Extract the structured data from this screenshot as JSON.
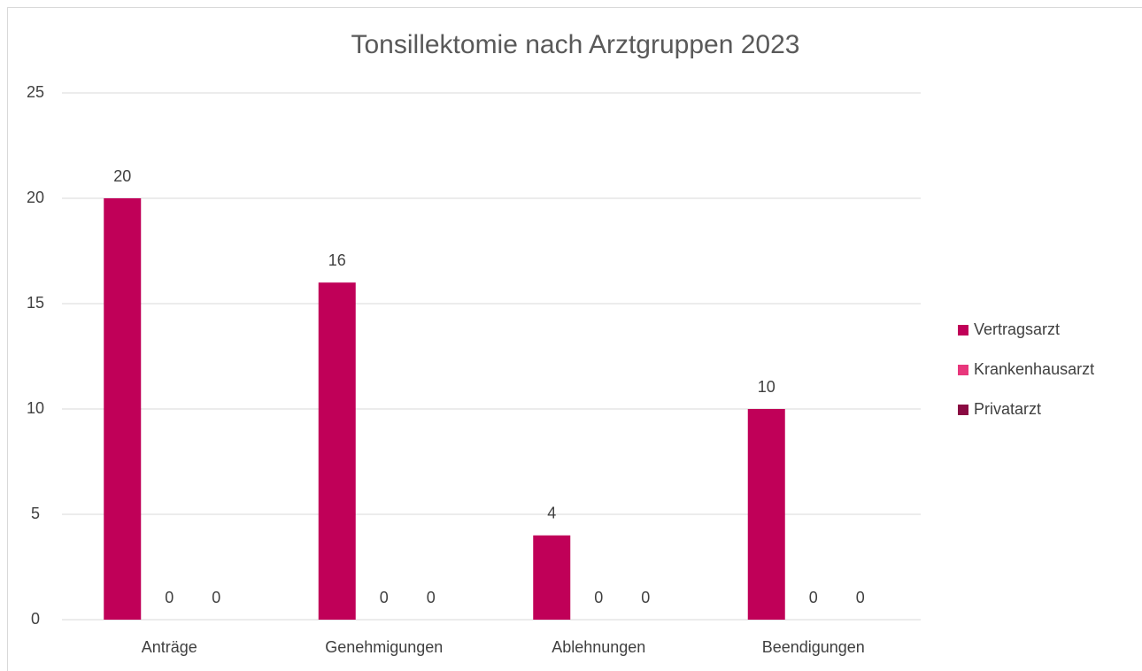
{
  "chart_data": {
    "type": "bar",
    "title": "Tonsillektomie nach Arztgruppen 2023",
    "categories": [
      "Anträge",
      "Genehmigungen",
      "Ablehnungen",
      "Beendigungen"
    ],
    "series": [
      {
        "name": "Vertragsarzt",
        "color": "#c00058",
        "values": [
          20,
          16,
          4,
          10
        ]
      },
      {
        "name": "Krankenhausarzt",
        "color": "#e8377c",
        "values": [
          0,
          0,
          0,
          0
        ]
      },
      {
        "name": "Privatarzt",
        "color": "#8a0a42",
        "values": [
          0,
          0,
          0,
          0
        ]
      }
    ],
    "ylim": [
      0,
      25
    ],
    "yticks": [
      0,
      5,
      10,
      15,
      20,
      25
    ],
    "grid": true,
    "legend": "right"
  }
}
